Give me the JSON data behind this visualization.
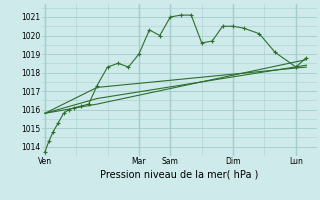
{
  "xlabel": "Pression niveau de la mer( hPa )",
  "bg_color": "#ceeaea",
  "grid_color": "#a8d0d0",
  "line_color": "#2d6e2d",
  "ylim": [
    1013.5,
    1021.7
  ],
  "yticks": [
    1014,
    1015,
    1016,
    1017,
    1018,
    1019,
    1020,
    1021
  ],
  "day_labels": [
    "Ven",
    "Mar",
    "Sam",
    "Dim",
    "Lun"
  ],
  "day_positions": [
    0,
    9,
    12,
    18,
    24
  ],
  "xlim": [
    -0.3,
    26
  ],
  "series0_x": [
    0,
    0.4,
    0.8,
    1.3,
    1.8,
    2.3,
    2.8,
    3.5,
    4.2,
    5.0,
    6.0,
    7.0,
    8.0,
    9.0,
    10.0,
    11.0,
    12.0,
    13.0,
    14.0,
    15.0,
    16.0,
    17.0,
    18.0,
    19.0,
    20.5,
    22.0,
    24.0,
    25.0
  ],
  "series0_y": [
    1013.7,
    1014.3,
    1014.8,
    1015.3,
    1015.8,
    1016.0,
    1016.1,
    1016.2,
    1016.3,
    1017.3,
    1018.3,
    1018.5,
    1018.3,
    1019.0,
    1020.3,
    1020.0,
    1021.0,
    1021.1,
    1021.1,
    1019.6,
    1019.7,
    1020.5,
    1020.5,
    1020.4,
    1020.1,
    1019.1,
    1018.3,
    1018.8
  ],
  "series1_x": [
    0,
    5,
    25
  ],
  "series1_y": [
    1015.8,
    1016.3,
    1018.7
  ],
  "series2_x": [
    0,
    5,
    25
  ],
  "series2_y": [
    1015.8,
    1016.6,
    1018.4
  ],
  "series3_x": [
    0,
    5,
    25
  ],
  "series3_y": [
    1015.8,
    1017.2,
    1018.3
  ]
}
